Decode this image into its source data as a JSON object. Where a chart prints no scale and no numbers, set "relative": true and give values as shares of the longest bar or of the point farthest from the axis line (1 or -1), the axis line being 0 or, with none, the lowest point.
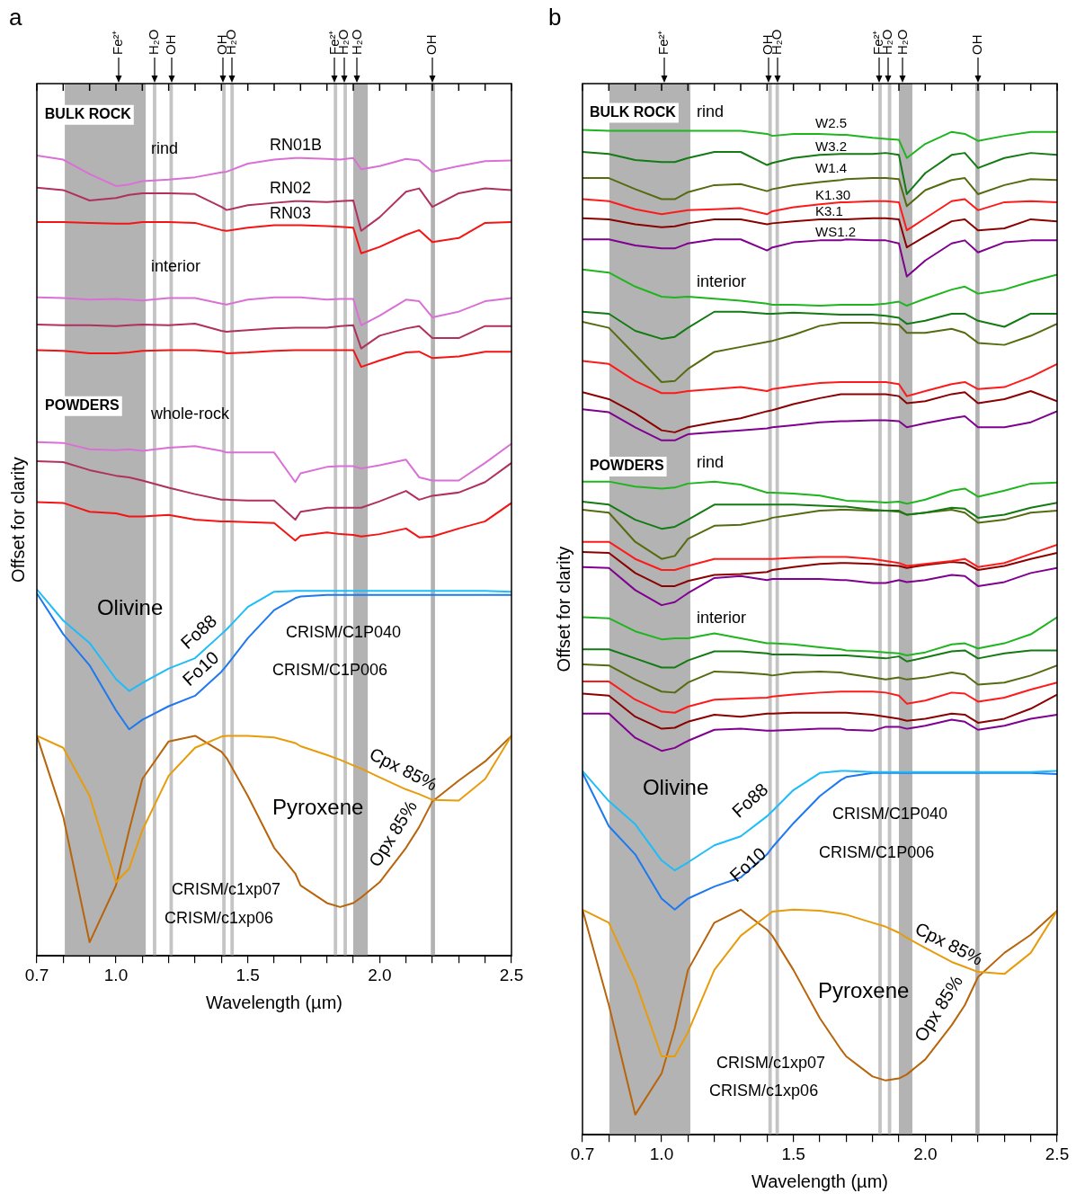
{
  "chart_data": [
    {
      "type": "line",
      "title": "a",
      "xlabel": "Wavelength (µm)",
      "ylabel": "Offset for clarity",
      "relative": true,
      "marker": "none",
      "x": [
        0.7,
        0.8,
        0.9,
        1.0,
        1.05,
        1.1,
        1.2,
        1.3,
        1.4,
        1.42,
        1.5,
        1.6,
        1.68,
        1.7,
        1.8,
        1.85,
        1.9,
        1.93,
        2.0,
        2.1,
        2.15,
        2.2,
        2.3,
        2.4,
        2.5
      ],
      "xlim": [
        0.7,
        2.5
      ],
      "xticks": [
        {
          "value": 0.7,
          "label": "0.7"
        },
        {
          "value": 0.8,
          "label": null
        },
        {
          "value": 0.9,
          "label": null
        },
        {
          "value": 1.0,
          "label": "1.0"
        },
        {
          "value": 1.1,
          "label": null
        },
        {
          "value": 1.2,
          "label": null
        },
        {
          "value": 1.3,
          "label": null
        },
        {
          "value": 1.4,
          "label": null
        },
        {
          "value": 1.5,
          "label": "1.5"
        },
        {
          "value": 1.6,
          "label": null
        },
        {
          "value": 1.7,
          "label": null
        },
        {
          "value": 1.8,
          "label": null
        },
        {
          "value": 1.9,
          "label": null
        },
        {
          "value": 2.0,
          "label": "2.0"
        },
        {
          "value": 2.1,
          "label": null
        },
        {
          "value": 2.2,
          "label": null
        },
        {
          "value": 2.3,
          "label": null
        },
        {
          "value": 2.4,
          "label": null
        },
        {
          "value": 2.5,
          "label": "2.5"
        }
      ],
      "bands": [
        {
          "axis": "x",
          "from": 0.806,
          "to": 1.113,
          "color": "#b3b3b3"
        },
        {
          "axis": "x",
          "from": 1.14,
          "to": 1.153,
          "color": "#c4c4c4"
        },
        {
          "axis": "x",
          "from": 1.203,
          "to": 1.216,
          "color": "#c4c4c4"
        },
        {
          "axis": "x",
          "from": 1.403,
          "to": 1.416,
          "color": "#c4c4c4"
        },
        {
          "axis": "x",
          "from": 1.434,
          "to": 1.447,
          "color": "#c4c4c4"
        },
        {
          "axis": "x",
          "from": 1.826,
          "to": 1.839,
          "color": "#c4c4c4"
        },
        {
          "axis": "x",
          "from": 1.863,
          "to": 1.876,
          "color": "#c4c4c4"
        },
        {
          "axis": "x",
          "from": 1.9,
          "to": 1.955,
          "color": "#b3b3b3"
        },
        {
          "axis": "x",
          "from": 2.194,
          "to": 2.21,
          "color": "#b3b3b3"
        }
      ],
      "series": [
        {
          "name": "RN01B",
          "color": "#da70d6",
          "values": [
            1.0,
            0.995,
            0.977,
            0.962,
            0.964,
            0.968,
            0.97,
            0.973,
            0.979,
            0.98,
            0.99,
            0.995,
            0.997,
            0.997,
            0.996,
            0.995,
            0.997,
            0.983,
            0.987,
            0.996,
            0.994,
            0.98,
            0.987,
            0.993,
            0.994
          ]
        },
        {
          "name": "RN02",
          "color": "#b03060",
          "values": [
            0.96,
            0.957,
            0.944,
            0.947,
            0.951,
            0.953,
            0.953,
            0.952,
            0.936,
            0.932,
            0.938,
            0.941,
            0.943,
            0.943,
            0.942,
            0.943,
            0.944,
            0.906,
            0.923,
            0.955,
            0.959,
            0.936,
            0.953,
            0.959,
            0.957
          ]
        },
        {
          "name": "RN03",
          "color": "#f41414",
          "values": [
            0.917,
            0.917,
            0.916,
            0.915,
            0.915,
            0.917,
            0.917,
            0.916,
            0.907,
            0.906,
            0.91,
            0.913,
            0.913,
            0.913,
            0.912,
            0.911,
            0.91,
            0.878,
            0.886,
            0.901,
            0.907,
            0.892,
            0.897,
            0.916,
            0.917
          ]
        },
        {
          "color": "#da70d6",
          "values": [
            0.823,
            0.822,
            0.82,
            0.821,
            0.82,
            0.819,
            0.822,
            0.822,
            0.815,
            0.814,
            0.82,
            0.823,
            0.823,
            0.823,
            0.82,
            0.821,
            0.821,
            0.788,
            0.8,
            0.82,
            0.818,
            0.798,
            0.805,
            0.818,
            0.822
          ]
        },
        {
          "color": "#b03060",
          "values": [
            0.789,
            0.788,
            0.788,
            0.787,
            0.788,
            0.789,
            0.788,
            0.79,
            0.781,
            0.78,
            0.782,
            0.784,
            0.785,
            0.785,
            0.785,
            0.787,
            0.788,
            0.759,
            0.775,
            0.784,
            0.787,
            0.772,
            0.772,
            0.787,
            0.787
          ]
        },
        {
          "color": "#f41414",
          "values": [
            0.757,
            0.756,
            0.753,
            0.753,
            0.754,
            0.756,
            0.757,
            0.757,
            0.755,
            0.753,
            0.754,
            0.756,
            0.757,
            0.757,
            0.757,
            0.757,
            0.757,
            0.736,
            0.744,
            0.754,
            0.755,
            0.747,
            0.749,
            0.755,
            0.755
          ]
        },
        {
          "color": "#da70d6",
          "values": [
            0.642,
            0.641,
            0.633,
            0.632,
            0.633,
            0.631,
            0.635,
            0.637,
            0.631,
            0.629,
            0.629,
            0.629,
            0.592,
            0.603,
            0.611,
            0.612,
            0.612,
            0.609,
            0.613,
            0.62,
            0.598,
            0.594,
            0.594,
            0.616,
            0.64
          ]
        },
        {
          "color": "#b03060",
          "values": [
            0.618,
            0.617,
            0.607,
            0.6,
            0.598,
            0.594,
            0.585,
            0.577,
            0.57,
            0.57,
            0.569,
            0.569,
            0.545,
            0.555,
            0.56,
            0.56,
            0.56,
            0.56,
            0.568,
            0.581,
            0.57,
            0.575,
            0.579,
            0.592,
            0.616
          ]
        },
        {
          "color": "#f41414",
          "values": [
            0.567,
            0.566,
            0.555,
            0.553,
            0.549,
            0.549,
            0.551,
            0.545,
            0.543,
            0.543,
            0.542,
            0.541,
            0.519,
            0.525,
            0.529,
            0.527,
            0.526,
            0.524,
            0.527,
            0.534,
            0.523,
            0.524,
            0.534,
            0.543,
            0.566
          ]
        },
        {
          "name": "Fo88",
          "color": "#1ebcf8",
          "values": [
            0.458,
            0.419,
            0.391,
            0.346,
            0.331,
            0.341,
            0.359,
            0.372,
            0.402,
            0.408,
            0.436,
            0.455,
            0.456,
            0.456,
            0.456,
            0.456,
            0.456,
            0.456,
            0.456,
            0.456,
            0.456,
            0.456,
            0.456,
            0.456,
            0.455
          ]
        },
        {
          "name": "Fo10",
          "color": "#1e78f0",
          "values": [
            0.453,
            0.402,
            0.363,
            0.307,
            0.283,
            0.295,
            0.312,
            0.325,
            0.355,
            0.363,
            0.397,
            0.432,
            0.447,
            0.449,
            0.451,
            0.451,
            0.451,
            0.451,
            0.451,
            0.451,
            0.451,
            0.451,
            0.451,
            0.451,
            0.451
          ]
        },
        {
          "name": "Cpx 85%",
          "color": "#e89c0c",
          "values": [
            0.275,
            0.26,
            0.2,
            0.092,
            0.109,
            0.157,
            0.225,
            0.26,
            0.274,
            0.275,
            0.275,
            0.273,
            0.266,
            0.262,
            0.251,
            0.245,
            0.238,
            0.234,
            0.223,
            0.208,
            0.202,
            0.195,
            0.194,
            0.221,
            0.275
          ]
        },
        {
          "name": "Opx 85%",
          "color": "#b8640a",
          "values": [
            0.275,
            0.174,
            0.017,
            0.088,
            0.157,
            0.221,
            0.268,
            0.275,
            0.255,
            0.247,
            0.2,
            0.135,
            0.103,
            0.088,
            0.066,
            0.061,
            0.066,
            0.073,
            0.092,
            0.135,
            0.161,
            0.193,
            0.219,
            0.243,
            0.275
          ]
        }
      ],
      "annotations": [
        "BULK ROCK",
        "rind",
        "interior",
        "POWDERS",
        "whole-rock",
        "Olivine",
        "CRISM/C1P040",
        "CRISM/C1P006",
        "Pyroxene",
        "CRISM/c1xp07",
        "CRISM/c1xp06",
        "Fe²⁺",
        "H₂O",
        "OH",
        "OH",
        "H₂O",
        "Fe²⁺",
        "H₂O",
        "H₂O",
        "OH"
      ]
    },
    {
      "type": "line",
      "title": "b",
      "xlabel": "Wavelength (µm)",
      "ylabel": "Offset for clarity",
      "relative": true,
      "marker": "none",
      "x": [
        0.7,
        0.8,
        0.9,
        1.0,
        1.05,
        1.1,
        1.2,
        1.3,
        1.4,
        1.42,
        1.5,
        1.6,
        1.68,
        1.7,
        1.8,
        1.85,
        1.9,
        1.93,
        2.0,
        2.1,
        2.15,
        2.2,
        2.3,
        2.4,
        2.5
      ],
      "xlim": [
        0.7,
        2.5
      ],
      "xticks": [
        {
          "value": 0.7,
          "label": "0.7"
        },
        {
          "value": 0.8,
          "label": null
        },
        {
          "value": 0.9,
          "label": null
        },
        {
          "value": 1.0,
          "label": "1.0"
        },
        {
          "value": 1.1,
          "label": null
        },
        {
          "value": 1.2,
          "label": null
        },
        {
          "value": 1.3,
          "label": null
        },
        {
          "value": 1.4,
          "label": null
        },
        {
          "value": 1.5,
          "label": "1.5"
        },
        {
          "value": 1.6,
          "label": null
        },
        {
          "value": 1.7,
          "label": null
        },
        {
          "value": 1.8,
          "label": null
        },
        {
          "value": 1.9,
          "label": null
        },
        {
          "value": 2.0,
          "label": "2.0"
        },
        {
          "value": 2.1,
          "label": null
        },
        {
          "value": 2.2,
          "label": null
        },
        {
          "value": 2.3,
          "label": null
        },
        {
          "value": 2.4,
          "label": null
        },
        {
          "value": 2.5,
          "label": "2.5"
        }
      ],
      "bands": [
        {
          "axis": "x",
          "from": 0.802,
          "to": 1.109,
          "color": "#b3b3b3"
        },
        {
          "axis": "x",
          "from": 1.405,
          "to": 1.418,
          "color": "#c4c4c4"
        },
        {
          "axis": "x",
          "from": 1.432,
          "to": 1.445,
          "color": "#c4c4c4"
        },
        {
          "axis": "x",
          "from": 1.822,
          "to": 1.835,
          "color": "#c4c4c4"
        },
        {
          "axis": "x",
          "from": 1.858,
          "to": 1.871,
          "color": "#c4c4c4"
        },
        {
          "axis": "x",
          "from": 1.9,
          "to": 1.951,
          "color": "#b3b3b3"
        },
        {
          "axis": "x",
          "from": 2.19,
          "to": 2.206,
          "color": "#b3b3b3"
        }
      ],
      "series": [
        {
          "name": "W2.5",
          "color": "#1fb51f",
          "values": [
            1.0,
            0.999,
            0.999,
            0.999,
            0.999,
            0.999,
            0.999,
            0.999,
            0.996,
            0.994,
            0.996,
            0.996,
            0.995,
            0.995,
            0.992,
            0.991,
            0.99,
            0.972,
            0.986,
            0.998,
            0.996,
            0.989,
            0.994,
            0.998,
            0.998
          ]
        },
        {
          "name": "W3.2",
          "color": "#147a14",
          "values": [
            0.978,
            0.976,
            0.97,
            0.968,
            0.968,
            0.972,
            0.978,
            0.978,
            0.965,
            0.967,
            0.972,
            0.975,
            0.976,
            0.976,
            0.976,
            0.977,
            0.975,
            0.936,
            0.957,
            0.975,
            0.977,
            0.962,
            0.972,
            0.977,
            0.975
          ]
        },
        {
          "name": "W1.4",
          "color": "#556b10",
          "values": [
            0.952,
            0.952,
            0.941,
            0.931,
            0.931,
            0.938,
            0.945,
            0.946,
            0.939,
            0.941,
            0.945,
            0.948,
            0.95,
            0.951,
            0.952,
            0.952,
            0.951,
            0.924,
            0.94,
            0.95,
            0.952,
            0.936,
            0.945,
            0.951,
            0.95
          ]
        },
        {
          "name": "K1.30",
          "color": "#ff1a1a",
          "values": [
            0.931,
            0.929,
            0.921,
            0.916,
            0.918,
            0.92,
            0.921,
            0.922,
            0.916,
            0.919,
            0.923,
            0.926,
            0.928,
            0.928,
            0.929,
            0.929,
            0.928,
            0.9,
            0.912,
            0.929,
            0.931,
            0.92,
            0.928,
            0.929,
            0.928
          ]
        },
        {
          "name": "K3.1",
          "color": "#8b0000",
          "values": [
            0.912,
            0.911,
            0.906,
            0.903,
            0.904,
            0.907,
            0.911,
            0.911,
            0.906,
            0.907,
            0.909,
            0.911,
            0.911,
            0.911,
            0.912,
            0.912,
            0.911,
            0.883,
            0.894,
            0.909,
            0.911,
            0.9,
            0.902,
            0.911,
            0.909
          ]
        },
        {
          "name": "WS1.2",
          "color": "#800090",
          "values": [
            0.891,
            0.891,
            0.885,
            0.882,
            0.882,
            0.887,
            0.891,
            0.891,
            0.88,
            0.883,
            0.888,
            0.89,
            0.89,
            0.891,
            0.89,
            0.89,
            0.887,
            0.854,
            0.87,
            0.887,
            0.89,
            0.878,
            0.888,
            0.89,
            0.89
          ]
        },
        {
          "color": "#1fb51f",
          "values": [
            0.861,
            0.858,
            0.844,
            0.834,
            0.833,
            0.834,
            0.832,
            0.83,
            0.827,
            0.826,
            0.826,
            0.825,
            0.826,
            0.826,
            0.826,
            0.827,
            0.829,
            0.825,
            0.832,
            0.841,
            0.844,
            0.837,
            0.841,
            0.849,
            0.856
          ]
        },
        {
          "color": "#147a14",
          "values": [
            0.819,
            0.817,
            0.8,
            0.792,
            0.794,
            0.803,
            0.819,
            0.819,
            0.817,
            0.817,
            0.818,
            0.817,
            0.816,
            0.816,
            0.816,
            0.815,
            0.813,
            0.807,
            0.81,
            0.817,
            0.817,
            0.81,
            0.804,
            0.817,
            0.817
          ]
        },
        {
          "color": "#556b10",
          "values": [
            0.809,
            0.803,
            0.776,
            0.749,
            0.75,
            0.762,
            0.779,
            0.784,
            0.789,
            0.79,
            0.796,
            0.805,
            0.808,
            0.808,
            0.808,
            0.807,
            0.806,
            0.798,
            0.798,
            0.802,
            0.798,
            0.788,
            0.786,
            0.795,
            0.807
          ]
        },
        {
          "color": "#ff1a1a",
          "values": [
            0.77,
            0.767,
            0.75,
            0.738,
            0.738,
            0.74,
            0.742,
            0.744,
            0.74,
            0.742,
            0.745,
            0.748,
            0.749,
            0.749,
            0.749,
            0.749,
            0.747,
            0.735,
            0.74,
            0.747,
            0.749,
            0.742,
            0.744,
            0.754,
            0.767
          ]
        },
        {
          "color": "#8b0000",
          "values": [
            0.739,
            0.732,
            0.718,
            0.701,
            0.699,
            0.704,
            0.709,
            0.713,
            0.72,
            0.721,
            0.727,
            0.733,
            0.737,
            0.737,
            0.737,
            0.737,
            0.735,
            0.728,
            0.73,
            0.737,
            0.739,
            0.728,
            0.732,
            0.74,
            0.73
          ]
        },
        {
          "color": "#800090",
          "values": [
            0.722,
            0.719,
            0.704,
            0.691,
            0.691,
            0.697,
            0.699,
            0.701,
            0.703,
            0.704,
            0.706,
            0.709,
            0.71,
            0.71,
            0.711,
            0.711,
            0.71,
            0.704,
            0.708,
            0.713,
            0.715,
            0.704,
            0.704,
            0.709,
            0.72
          ]
        },
        {
          "color": "#1fb51f",
          "values": [
            0.65,
            0.65,
            0.645,
            0.643,
            0.644,
            0.648,
            0.65,
            0.647,
            0.639,
            0.639,
            0.638,
            0.636,
            0.632,
            0.631,
            0.63,
            0.629,
            0.63,
            0.628,
            0.632,
            0.641,
            0.643,
            0.635,
            0.641,
            0.648,
            0.649
          ]
        },
        {
          "color": "#147a14",
          "values": [
            0.63,
            0.627,
            0.612,
            0.603,
            0.605,
            0.612,
            0.627,
            0.627,
            0.627,
            0.627,
            0.627,
            0.626,
            0.625,
            0.625,
            0.622,
            0.621,
            0.621,
            0.617,
            0.619,
            0.624,
            0.623,
            0.614,
            0.617,
            0.624,
            0.629
          ]
        },
        {
          "color": "#556b10",
          "values": [
            0.622,
            0.619,
            0.59,
            0.573,
            0.576,
            0.593,
            0.606,
            0.607,
            0.612,
            0.614,
            0.617,
            0.621,
            0.622,
            0.622,
            0.621,
            0.621,
            0.62,
            0.617,
            0.619,
            0.622,
            0.619,
            0.609,
            0.612,
            0.619,
            0.621
          ]
        },
        {
          "color": "#ff1a1a",
          "values": [
            0.59,
            0.59,
            0.573,
            0.562,
            0.562,
            0.566,
            0.573,
            0.573,
            0.573,
            0.573,
            0.574,
            0.575,
            0.575,
            0.575,
            0.573,
            0.571,
            0.569,
            0.566,
            0.568,
            0.571,
            0.573,
            0.565,
            0.569,
            0.578,
            0.587
          ]
        },
        {
          "color": "#8b0000",
          "values": [
            0.58,
            0.579,
            0.559,
            0.546,
            0.546,
            0.551,
            0.557,
            0.558,
            0.56,
            0.562,
            0.565,
            0.568,
            0.569,
            0.569,
            0.568,
            0.567,
            0.566,
            0.564,
            0.567,
            0.57,
            0.569,
            0.562,
            0.566,
            0.573,
            0.579
          ]
        },
        {
          "color": "#800090",
          "values": [
            0.565,
            0.564,
            0.542,
            0.527,
            0.53,
            0.539,
            0.554,
            0.556,
            0.552,
            0.553,
            0.553,
            0.553,
            0.552,
            0.552,
            0.549,
            0.549,
            0.552,
            0.55,
            0.552,
            0.557,
            0.556,
            0.546,
            0.55,
            0.559,
            0.564
          ]
        },
        {
          "color": "#1fb51f",
          "values": [
            0.515,
            0.514,
            0.501,
            0.493,
            0.494,
            0.494,
            0.499,
            0.494,
            0.489,
            0.489,
            0.488,
            0.485,
            0.483,
            0.482,
            0.481,
            0.48,
            0.479,
            0.477,
            0.48,
            0.488,
            0.489,
            0.484,
            0.489,
            0.498,
            0.515
          ]
        },
        {
          "color": "#147a14",
          "values": [
            0.483,
            0.483,
            0.474,
            0.465,
            0.465,
            0.472,
            0.481,
            0.481,
            0.479,
            0.478,
            0.478,
            0.477,
            0.477,
            0.477,
            0.475,
            0.474,
            0.476,
            0.471,
            0.475,
            0.481,
            0.482,
            0.474,
            0.479,
            0.482,
            0.482
          ]
        },
        {
          "color": "#556b10",
          "values": [
            0.468,
            0.467,
            0.453,
            0.441,
            0.44,
            0.45,
            0.461,
            0.46,
            0.458,
            0.457,
            0.46,
            0.461,
            0.46,
            0.459,
            0.455,
            0.453,
            0.455,
            0.453,
            0.455,
            0.46,
            0.458,
            0.448,
            0.45,
            0.457,
            0.467
          ]
        },
        {
          "color": "#ff1a1a",
          "values": [
            0.451,
            0.451,
            0.433,
            0.421,
            0.42,
            0.426,
            0.433,
            0.434,
            0.435,
            0.436,
            0.438,
            0.44,
            0.441,
            0.441,
            0.441,
            0.44,
            0.437,
            0.429,
            0.432,
            0.44,
            0.439,
            0.431,
            0.435,
            0.443,
            0.45
          ]
        },
        {
          "color": "#8b0000",
          "values": [
            0.439,
            0.437,
            0.416,
            0.404,
            0.405,
            0.411,
            0.418,
            0.416,
            0.419,
            0.419,
            0.42,
            0.42,
            0.42,
            0.42,
            0.418,
            0.416,
            0.414,
            0.412,
            0.414,
            0.419,
            0.418,
            0.41,
            0.414,
            0.424,
            0.438
          ]
        },
        {
          "color": "#800090",
          "values": [
            0.419,
            0.419,
            0.395,
            0.382,
            0.385,
            0.392,
            0.403,
            0.404,
            0.402,
            0.402,
            0.403,
            0.404,
            0.404,
            0.403,
            0.402,
            0.406,
            0.406,
            0.404,
            0.407,
            0.413,
            0.411,
            0.403,
            0.407,
            0.414,
            0.418
          ]
        },
        {
          "name": "Fo88",
          "color": "#1ebcf8",
          "values": [
            0.362,
            0.332,
            0.309,
            0.273,
            0.263,
            0.271,
            0.288,
            0.297,
            0.317,
            0.322,
            0.343,
            0.36,
            0.362,
            0.362,
            0.361,
            0.361,
            0.361,
            0.361,
            0.361,
            0.361,
            0.361,
            0.361,
            0.361,
            0.361,
            0.362
          ]
        },
        {
          "name": "Fo10",
          "color": "#1e78f0",
          "values": [
            0.36,
            0.307,
            0.279,
            0.235,
            0.224,
            0.235,
            0.247,
            0.256,
            0.279,
            0.286,
            0.31,
            0.337,
            0.353,
            0.356,
            0.36,
            0.36,
            0.36,
            0.36,
            0.36,
            0.36,
            0.36,
            0.36,
            0.36,
            0.36,
            0.359
          ]
        },
        {
          "name": "Cpx 85%",
          "color": "#e89c0c",
          "values": [
            0.224,
            0.211,
            0.153,
            0.078,
            0.078,
            0.102,
            0.164,
            0.198,
            0.218,
            0.222,
            0.224,
            0.223,
            0.22,
            0.219,
            0.211,
            0.207,
            0.201,
            0.196,
            0.186,
            0.172,
            0.167,
            0.162,
            0.16,
            0.181,
            0.223
          ]
        },
        {
          "name": "Opx 85%",
          "color": "#b8640a",
          "values": [
            0.224,
            0.129,
            0.02,
            0.061,
            0.106,
            0.164,
            0.211,
            0.224,
            0.204,
            0.198,
            0.164,
            0.116,
            0.085,
            0.078,
            0.058,
            0.054,
            0.056,
            0.06,
            0.075,
            0.109,
            0.129,
            0.157,
            0.181,
            0.199,
            0.223
          ]
        }
      ],
      "annotations": [
        "BULK ROCK",
        "rind",
        "interior",
        "POWDERS",
        "rind",
        "interior",
        "Olivine",
        "CRISM/C1P040",
        "CRISM/C1P006",
        "Pyroxene",
        "CRISM/c1xp07",
        "CRISM/c1xp06",
        "Fe²⁺",
        "OH",
        "H₂O",
        "Fe²⁺",
        "H₂O",
        "H₂O",
        "OH"
      ]
    }
  ]
}
